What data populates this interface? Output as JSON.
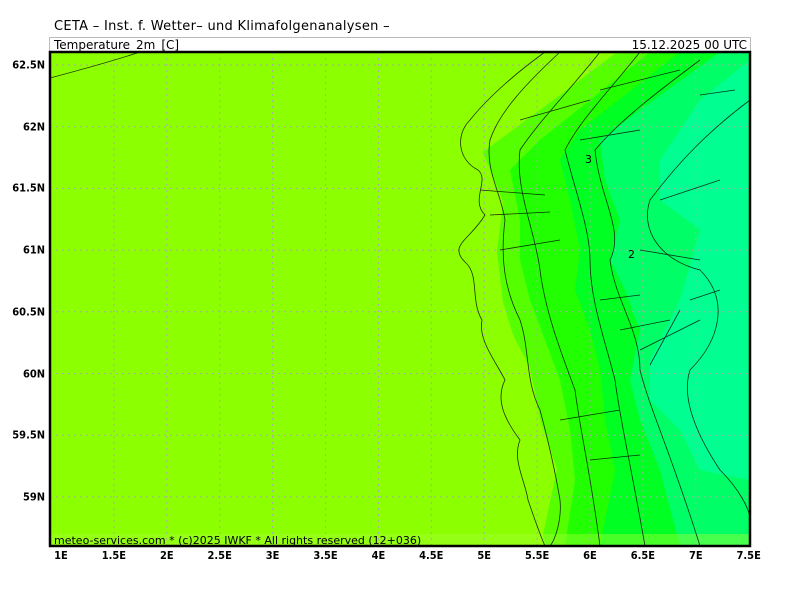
{
  "header": {
    "title": "CETA – Inst. f. Wetter– und Klimafolgenanalysen –",
    "variable": "Temperature_2m_[C]",
    "datetime": "15.12.2025 00 UTC"
  },
  "footer": {
    "credits": "meteo-services.com * (c)2025 IWKF * All rights reserved (12+036)"
  },
  "map": {
    "lon_range": [
      1,
      7.5
    ],
    "lat_range": [
      58.6,
      62.6
    ],
    "lon_labels": [
      {
        "v": 1,
        "t": "1E"
      },
      {
        "v": 1.5,
        "t": "1.5E"
      },
      {
        "v": 2,
        "t": "2E"
      },
      {
        "v": 2.5,
        "t": "2.5E"
      },
      {
        "v": 3,
        "t": "3E"
      },
      {
        "v": 3.5,
        "t": "3.5E"
      },
      {
        "v": 4,
        "t": "4E"
      },
      {
        "v": 4.5,
        "t": "4.5E"
      },
      {
        "v": 5,
        "t": "5E"
      },
      {
        "v": 5.5,
        "t": "5.5E"
      },
      {
        "v": 6,
        "t": "6E"
      },
      {
        "v": 6.5,
        "t": "6.5E"
      },
      {
        "v": 7,
        "t": "7E"
      },
      {
        "v": 7.5,
        "t": "7.5E"
      }
    ],
    "lat_labels": [
      {
        "v": 62.5,
        "t": "62.5N"
      },
      {
        "v": 62,
        "t": "62N"
      },
      {
        "v": 61.5,
        "t": "61.5N"
      },
      {
        "v": 61,
        "t": "61N"
      },
      {
        "v": 60.5,
        "t": "60.5N"
      },
      {
        "v": 60,
        "t": "60N"
      },
      {
        "v": 59.5,
        "t": "59.5N"
      },
      {
        "v": 59,
        "t": "59N"
      }
    ],
    "contour_labels": [
      "3",
      "2"
    ],
    "colors": {
      "background": "#8cff00",
      "bands": [
        "#55ff00",
        "#22ff00",
        "#00ff22",
        "#00ff66",
        "#00ff90"
      ],
      "grid": "#aaaaaa",
      "contour": "#000000"
    }
  }
}
